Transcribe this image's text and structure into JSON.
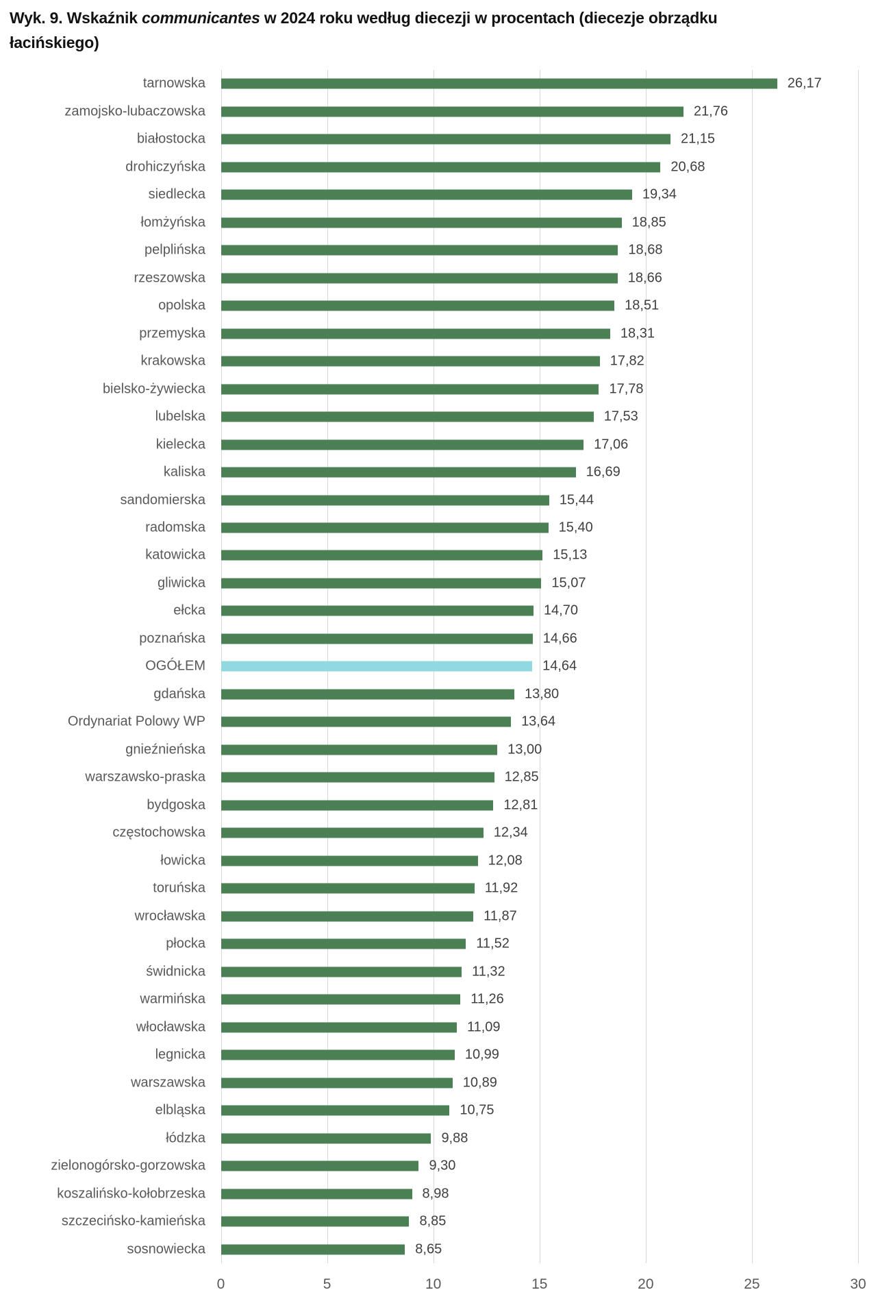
{
  "title": {
    "prefix": "Wyk. 9. Wskaźnik ",
    "italic_term": "communicantes",
    "line1_suffix": " w 2024 roku według diecezji w procentach (diecezje obrządku",
    "line2": "łacińskiego)"
  },
  "chart_data": {
    "type": "bar",
    "orientation": "horizontal",
    "title": "Wyk. 9. Wskaźnik communicantes w 2024 roku według diecezji w procentach (diecezje obrządku łacińskiego)",
    "xlabel": "",
    "ylabel": "",
    "xlim": [
      0,
      30
    ],
    "xticks": [
      0,
      5,
      10,
      15,
      20,
      25,
      30
    ],
    "xtick_labels": [
      "0",
      "5",
      "10",
      "15",
      "20",
      "25",
      "30"
    ],
    "grid": "vertical",
    "legend": "none",
    "decimal_separator": ",",
    "bar_color": "#4A8054",
    "highlight_color": "#92D8E0",
    "gridline_color": "#D8D8D8",
    "category_label_color": "#595959",
    "value_label_color": "#3F3F3F",
    "highlight_category": "OGÓŁEM",
    "categories": [
      "tarnowska",
      "zamojsko-lubaczowska",
      "białostocka",
      "drohiczyńska",
      "siedlecka",
      "łomżyńska",
      "pelplińska",
      "rzeszowska",
      "opolska",
      "przemyska",
      "krakowska",
      "bielsko-żywiecka",
      "lubelska",
      "kielecka",
      "kaliska",
      "sandomierska",
      "radomska",
      "katowicka",
      "gliwicka",
      "ełcka",
      "poznańska",
      "OGÓŁEM",
      "gdańska",
      "Ordynariat Polowy WP",
      "gnieźnieńska",
      "warszawsko-praska",
      "bydgoska",
      "częstochowska",
      "łowicka",
      "toruńska",
      "wrocławska",
      "płocka",
      "świdnicka",
      "warmińska",
      "włocławska",
      "legnicka",
      "warszawska",
      "elbląska",
      "łódzka",
      "zielonogórsko-gorzowska",
      "koszalińsko-kołobrzeska",
      "szczecińsko-kamieńska",
      "sosnowiecka"
    ],
    "values": [
      26.17,
      21.76,
      21.15,
      20.68,
      19.34,
      18.85,
      18.68,
      18.66,
      18.51,
      18.31,
      17.82,
      17.78,
      17.53,
      17.06,
      16.69,
      15.44,
      15.4,
      15.13,
      15.07,
      14.7,
      14.66,
      14.64,
      13.8,
      13.64,
      13.0,
      12.85,
      12.81,
      12.34,
      12.08,
      11.92,
      11.87,
      11.52,
      11.32,
      11.26,
      11.09,
      10.99,
      10.89,
      10.75,
      9.88,
      9.3,
      8.98,
      8.85,
      8.65
    ],
    "value_labels": [
      "26,17",
      "21,76",
      "21,15",
      "20,68",
      "19,34",
      "18,85",
      "18,68",
      "18,66",
      "18,51",
      "18,31",
      "17,82",
      "17,78",
      "17,53",
      "17,06",
      "16,69",
      "15,44",
      "15,40",
      "15,13",
      "15,07",
      "14,70",
      "14,66",
      "14,64",
      "13,80",
      "13,64",
      "13,00",
      "12,85",
      "12,81",
      "12,34",
      "12,08",
      "11,92",
      "11,87",
      "11,52",
      "11,32",
      "11,26",
      "11,09",
      "10,99",
      "10,89",
      "10,75",
      "9,88",
      "9,30",
      "8,98",
      "8,85",
      "8,65"
    ]
  }
}
